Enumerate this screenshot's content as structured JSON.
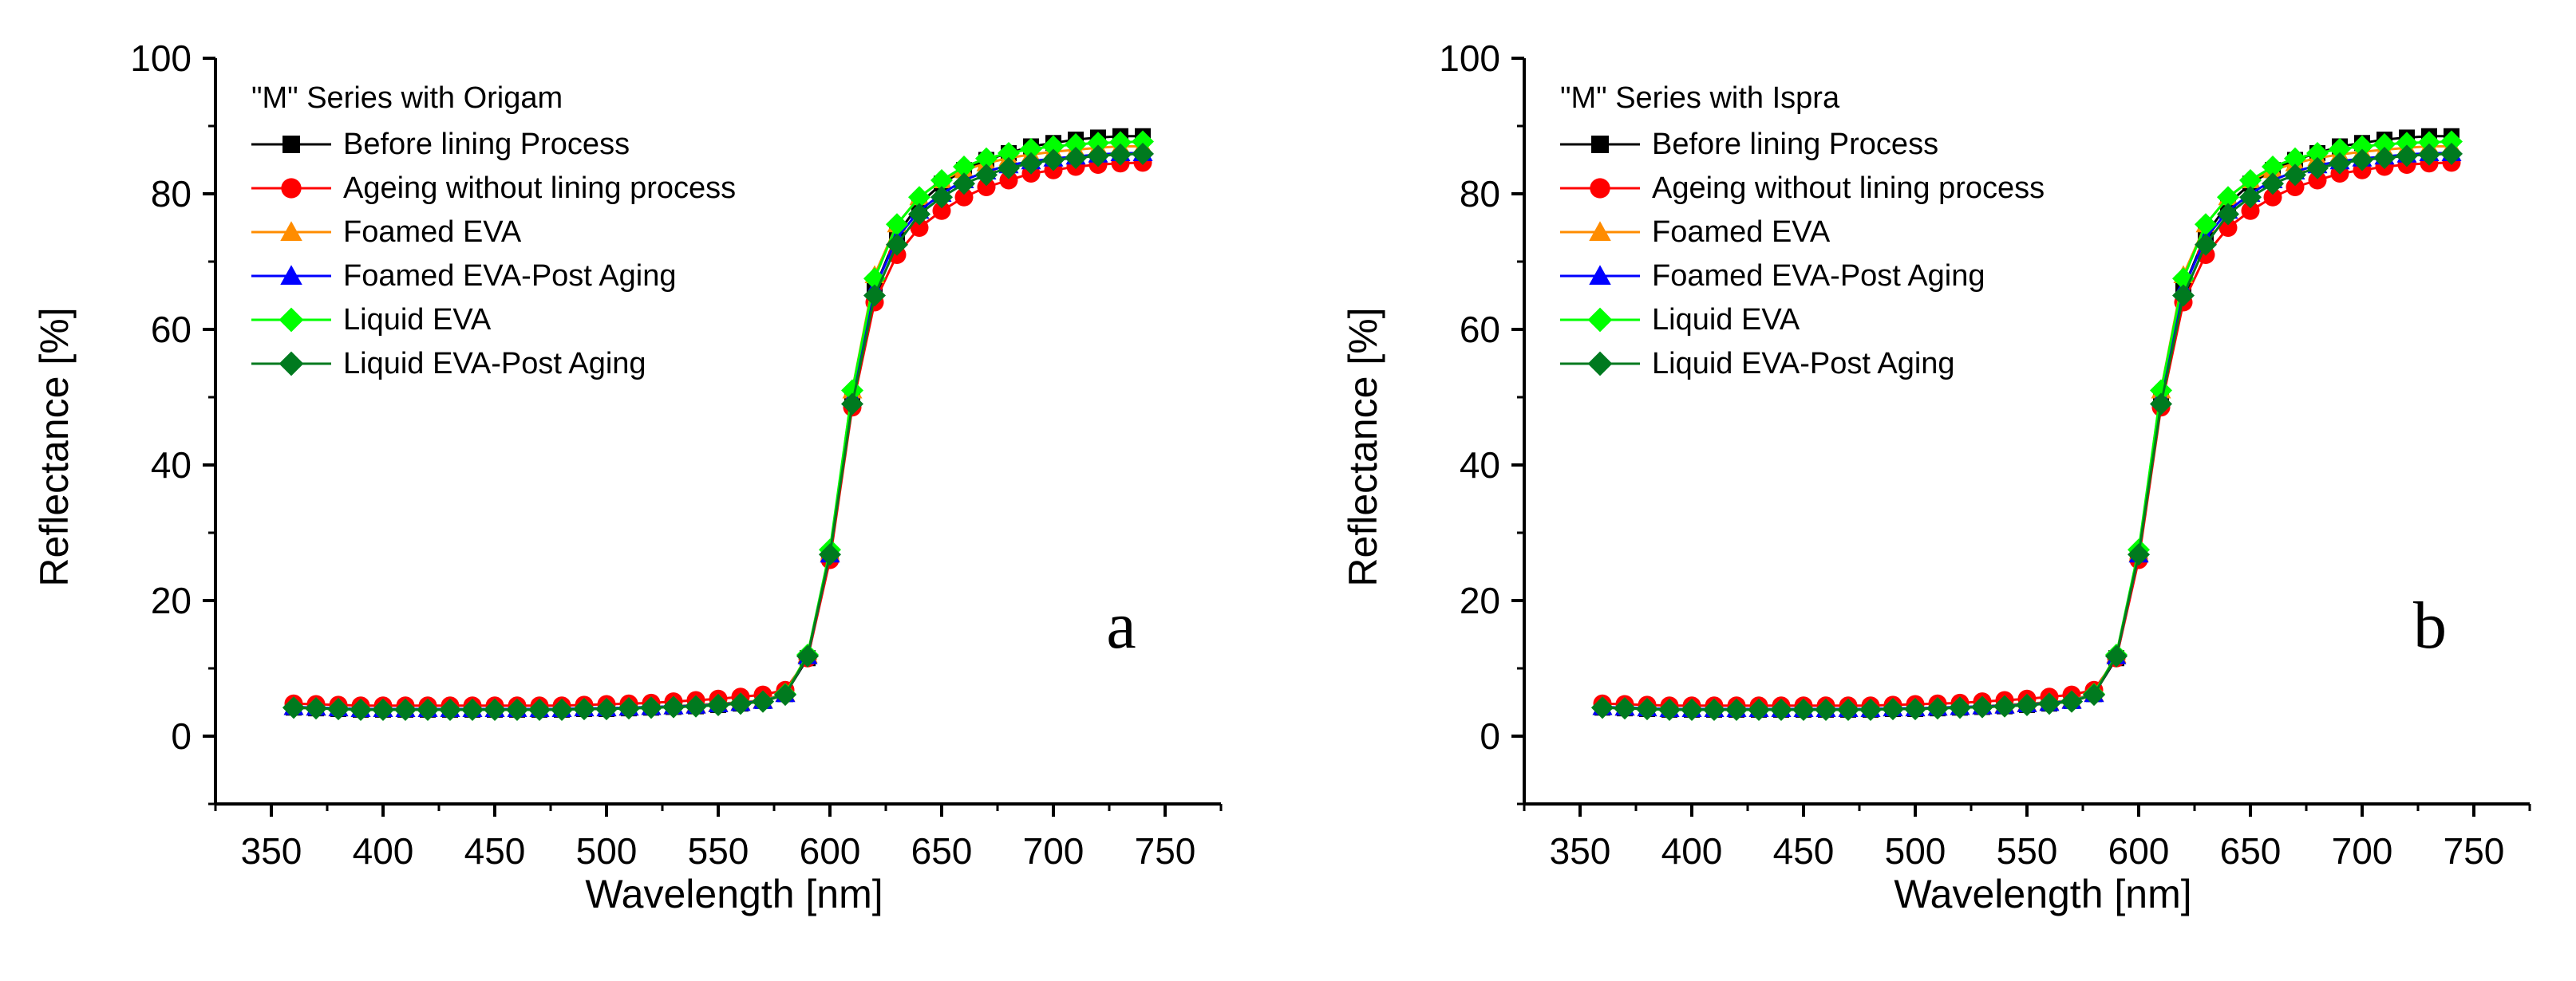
{
  "chart_data": [
    {
      "panel_label": "a",
      "type": "line",
      "legend_title": "\"M\" Series with Origam",
      "xlabel": "Wavelength [nm]",
      "ylabel": "Reflectance [%]",
      "xlim": [
        325,
        775
      ],
      "ylim": [
        -10,
        100
      ],
      "x_ticks": [
        350,
        400,
        450,
        500,
        550,
        600,
        650,
        700,
        750
      ],
      "y_ticks": [
        0,
        20,
        40,
        60,
        80,
        100
      ],
      "grid": false,
      "legend_position": "top-left",
      "x": [
        360,
        370,
        380,
        390,
        400,
        410,
        420,
        430,
        440,
        450,
        460,
        470,
        480,
        490,
        500,
        510,
        520,
        530,
        540,
        550,
        560,
        570,
        580,
        590,
        600,
        610,
        620,
        630,
        640,
        650,
        660,
        670,
        680,
        690,
        700,
        710,
        720,
        730,
        740
      ],
      "series": [
        {
          "name": "Before lining Process",
          "color": "#000000",
          "marker": "square",
          "values": [
            4.2,
            4.1,
            4.0,
            3.9,
            3.9,
            3.9,
            3.9,
            3.9,
            3.9,
            3.9,
            3.9,
            3.9,
            3.9,
            4.0,
            4.0,
            4.1,
            4.2,
            4.3,
            4.4,
            4.6,
            4.8,
            5.2,
            6.2,
            11.5,
            26.5,
            49.5,
            66.0,
            74.0,
            78.5,
            81.5,
            83.5,
            85.0,
            86.0,
            87.0,
            87.5,
            88.0,
            88.3,
            88.5,
            88.5
          ]
        },
        {
          "name": "Ageing without lining process",
          "color": "#ff0000",
          "marker": "circle",
          "values": [
            4.8,
            4.7,
            4.6,
            4.5,
            4.5,
            4.5,
            4.5,
            4.5,
            4.5,
            4.5,
            4.5,
            4.5,
            4.5,
            4.6,
            4.7,
            4.8,
            4.9,
            5.1,
            5.3,
            5.5,
            5.8,
            6.1,
            6.8,
            11.5,
            26.0,
            48.5,
            64.0,
            71.0,
            75.0,
            77.5,
            79.5,
            81.0,
            82.0,
            83.0,
            83.5,
            84.0,
            84.3,
            84.5,
            84.6
          ]
        },
        {
          "name": "Foamed EVA",
          "color": "#ff8c00",
          "marker": "triangle",
          "values": [
            4.3,
            4.2,
            4.1,
            4.0,
            4.0,
            4.0,
            4.0,
            4.0,
            4.0,
            4.0,
            4.0,
            4.0,
            4.0,
            4.1,
            4.1,
            4.2,
            4.3,
            4.4,
            4.6,
            4.8,
            5.0,
            5.3,
            6.3,
            12.0,
            27.0,
            51.0,
            68.0,
            75.5,
            79.5,
            82.0,
            83.5,
            84.5,
            85.3,
            85.8,
            86.2,
            86.5,
            86.8,
            87.0,
            87.0
          ]
        },
        {
          "name": "Foamed EVA-Post Aging",
          "color": "#0000ff",
          "marker": "triangle",
          "values": [
            4.3,
            4.2,
            4.1,
            4.0,
            4.0,
            4.0,
            4.0,
            4.0,
            4.0,
            4.0,
            4.0,
            4.0,
            4.0,
            4.1,
            4.1,
            4.2,
            4.3,
            4.4,
            4.5,
            4.7,
            4.9,
            5.2,
            6.2,
            11.8,
            26.8,
            50.0,
            66.0,
            73.5,
            77.5,
            80.0,
            82.0,
            83.3,
            84.2,
            84.8,
            85.2,
            85.5,
            85.8,
            86.0,
            86.0
          ]
        },
        {
          "name": "Liquid EVA",
          "color": "#00ff00",
          "marker": "diamond",
          "values": [
            4.2,
            4.1,
            4.0,
            3.9,
            3.9,
            3.9,
            3.9,
            3.9,
            3.9,
            3.9,
            3.9,
            3.9,
            3.9,
            4.0,
            4.0,
            4.1,
            4.2,
            4.3,
            4.4,
            4.6,
            4.8,
            5.1,
            6.2,
            12.0,
            27.5,
            51.0,
            67.5,
            75.5,
            79.5,
            82.0,
            84.0,
            85.2,
            86.0,
            86.6,
            87.0,
            87.3,
            87.5,
            87.6,
            87.7
          ]
        },
        {
          "name": "Liquid EVA-Post Aging",
          "color": "#007a1f",
          "marker": "diamond",
          "values": [
            4.2,
            4.1,
            4.0,
            3.9,
            3.9,
            3.9,
            3.9,
            3.9,
            3.9,
            3.9,
            3.9,
            3.9,
            3.9,
            4.0,
            4.0,
            4.1,
            4.2,
            4.3,
            4.4,
            4.6,
            4.8,
            5.1,
            6.1,
            11.8,
            26.8,
            49.0,
            65.0,
            72.5,
            77.0,
            79.5,
            81.5,
            82.8,
            83.8,
            84.5,
            85.0,
            85.3,
            85.6,
            85.8,
            85.9
          ]
        }
      ]
    },
    {
      "panel_label": "b",
      "type": "line",
      "legend_title": "\"M\" Series with Ispra",
      "xlabel": "Wavelength [nm]",
      "ylabel": "Reflectance [%]",
      "xlim": [
        325,
        775
      ],
      "ylim": [
        -10,
        100
      ],
      "x_ticks": [
        350,
        400,
        450,
        500,
        550,
        600,
        650,
        700,
        750
      ],
      "y_ticks": [
        0,
        20,
        40,
        60,
        80,
        100
      ],
      "grid": false,
      "legend_position": "top-left",
      "x": [
        360,
        370,
        380,
        390,
        400,
        410,
        420,
        430,
        440,
        450,
        460,
        470,
        480,
        490,
        500,
        510,
        520,
        530,
        540,
        550,
        560,
        570,
        580,
        590,
        600,
        610,
        620,
        630,
        640,
        650,
        660,
        670,
        680,
        690,
        700,
        710,
        720,
        730,
        740
      ],
      "series": [
        {
          "name": "Before lining Process",
          "color": "#000000",
          "marker": "square",
          "values": [
            4.2,
            4.1,
            4.0,
            3.9,
            3.9,
            3.9,
            3.9,
            3.9,
            3.9,
            3.9,
            3.9,
            3.9,
            3.9,
            4.0,
            4.0,
            4.1,
            4.2,
            4.3,
            4.4,
            4.6,
            4.8,
            5.2,
            6.2,
            11.5,
            26.5,
            49.5,
            66.0,
            74.0,
            78.5,
            81.5,
            83.5,
            85.0,
            86.0,
            87.0,
            87.5,
            88.0,
            88.3,
            88.5,
            88.5
          ]
        },
        {
          "name": "Ageing without lining process",
          "color": "#ff0000",
          "marker": "circle",
          "values": [
            4.8,
            4.7,
            4.6,
            4.5,
            4.5,
            4.5,
            4.5,
            4.5,
            4.5,
            4.5,
            4.5,
            4.5,
            4.5,
            4.6,
            4.7,
            4.8,
            4.9,
            5.1,
            5.3,
            5.5,
            5.8,
            6.1,
            6.8,
            11.5,
            26.0,
            48.5,
            64.0,
            71.0,
            75.0,
            77.5,
            79.5,
            81.0,
            82.0,
            83.0,
            83.5,
            84.0,
            84.3,
            84.5,
            84.6
          ]
        },
        {
          "name": "Foamed EVA",
          "color": "#ff8c00",
          "marker": "triangle",
          "values": [
            4.3,
            4.2,
            4.1,
            4.0,
            4.0,
            4.0,
            4.0,
            4.0,
            4.0,
            4.0,
            4.0,
            4.0,
            4.0,
            4.1,
            4.1,
            4.2,
            4.3,
            4.4,
            4.6,
            4.8,
            5.0,
            5.3,
            6.3,
            12.0,
            27.0,
            51.0,
            68.0,
            75.5,
            79.5,
            82.0,
            83.5,
            84.5,
            85.3,
            85.8,
            86.2,
            86.5,
            86.8,
            87.0,
            87.0
          ]
        },
        {
          "name": "Foamed EVA-Post Aging",
          "color": "#0000ff",
          "marker": "triangle",
          "values": [
            4.3,
            4.2,
            4.1,
            4.0,
            4.0,
            4.0,
            4.0,
            4.0,
            4.0,
            4.0,
            4.0,
            4.0,
            4.0,
            4.1,
            4.1,
            4.2,
            4.3,
            4.4,
            4.5,
            4.7,
            4.9,
            5.2,
            6.2,
            11.8,
            26.8,
            50.0,
            66.0,
            73.5,
            77.5,
            80.0,
            82.0,
            83.3,
            84.2,
            84.8,
            85.2,
            85.5,
            85.8,
            86.0,
            86.0
          ]
        },
        {
          "name": "Liquid EVA",
          "color": "#00ff00",
          "marker": "diamond",
          "values": [
            4.2,
            4.1,
            4.0,
            3.9,
            3.9,
            3.9,
            3.9,
            3.9,
            3.9,
            3.9,
            3.9,
            3.9,
            3.9,
            4.0,
            4.0,
            4.1,
            4.2,
            4.3,
            4.4,
            4.6,
            4.8,
            5.1,
            6.2,
            12.0,
            27.5,
            51.0,
            67.5,
            75.5,
            79.5,
            82.0,
            84.0,
            85.2,
            86.0,
            86.6,
            87.0,
            87.3,
            87.5,
            87.6,
            87.7
          ]
        },
        {
          "name": "Liquid EVA-Post Aging",
          "color": "#007a1f",
          "marker": "diamond",
          "values": [
            4.2,
            4.1,
            4.0,
            3.9,
            3.9,
            3.9,
            3.9,
            3.9,
            3.9,
            3.9,
            3.9,
            3.9,
            3.9,
            4.0,
            4.0,
            4.1,
            4.2,
            4.3,
            4.4,
            4.6,
            4.8,
            5.1,
            6.1,
            11.8,
            26.8,
            49.0,
            65.0,
            72.5,
            77.0,
            79.5,
            81.5,
            82.8,
            83.8,
            84.5,
            85.0,
            85.3,
            85.6,
            85.8,
            85.9
          ]
        }
      ]
    }
  ]
}
